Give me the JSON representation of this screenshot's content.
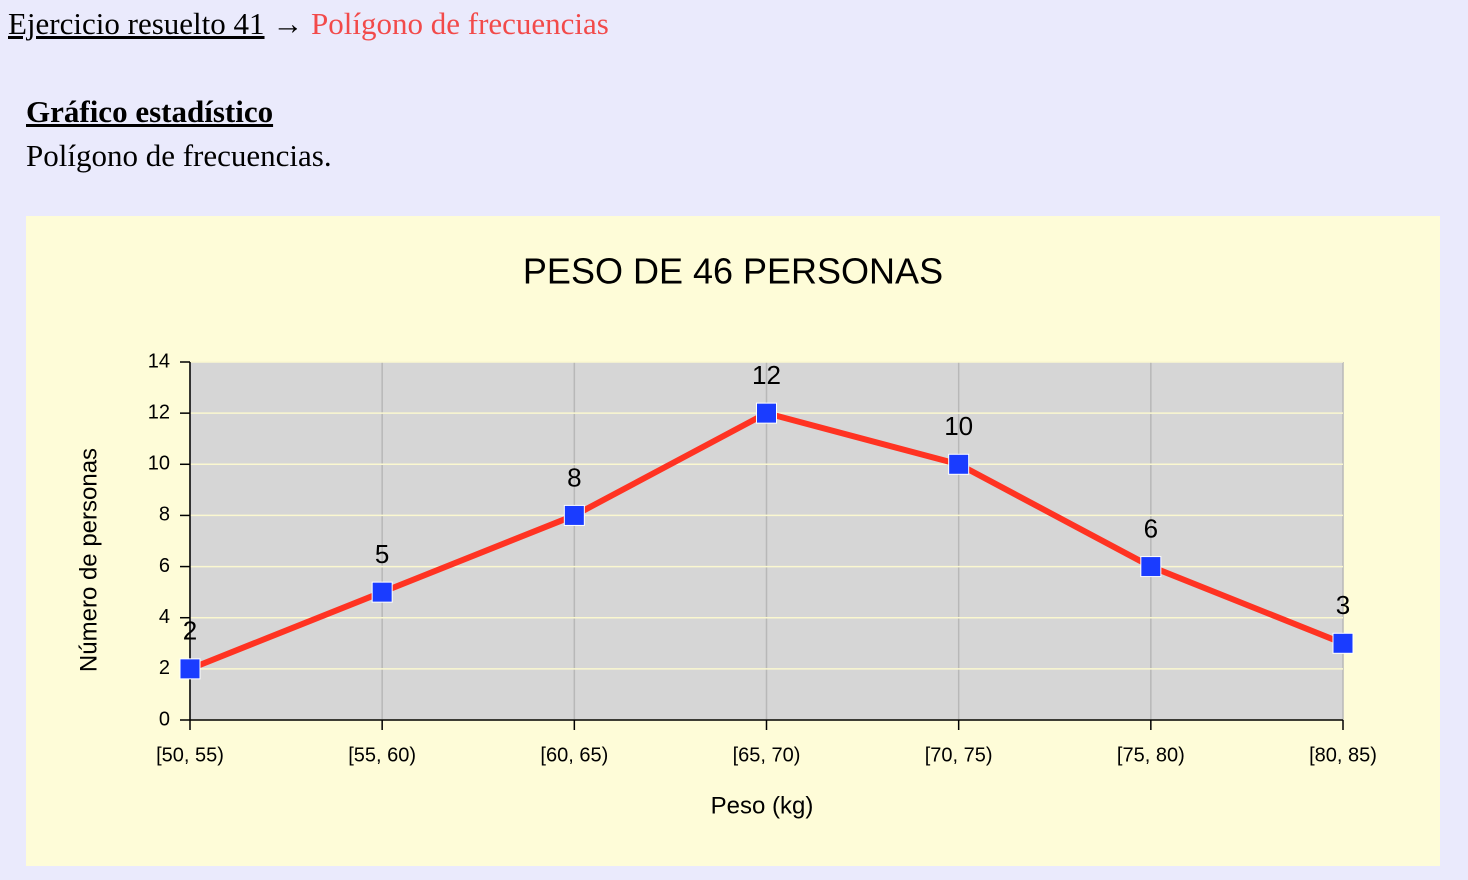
{
  "breadcrumb": {
    "link": "Ejercicio resuelto 41",
    "separator": "→",
    "current": "Polígono de frecuencias"
  },
  "section": {
    "heading": "Gráfico estadístico",
    "text": "Polígono de frecuencias."
  },
  "chart_data": {
    "type": "line",
    "title": "PESO DE 46 PERSONAS",
    "x_label": "Peso (kg)",
    "y_label": "Número de personas",
    "categories": [
      "[50, 55)",
      "[55, 60)",
      "[60, 65)",
      "[65, 70)",
      "[70, 75)",
      "[75, 80)",
      "[80, 85)"
    ],
    "values": [
      2,
      5,
      8,
      12,
      10,
      6,
      3
    ],
    "color": "#ff3322",
    "marker_color": "#1a3cff",
    "ylim": [
      0,
      14
    ],
    "yticks": [
      0,
      2,
      4,
      6,
      8,
      10,
      12,
      14
    ],
    "grid": true
  }
}
